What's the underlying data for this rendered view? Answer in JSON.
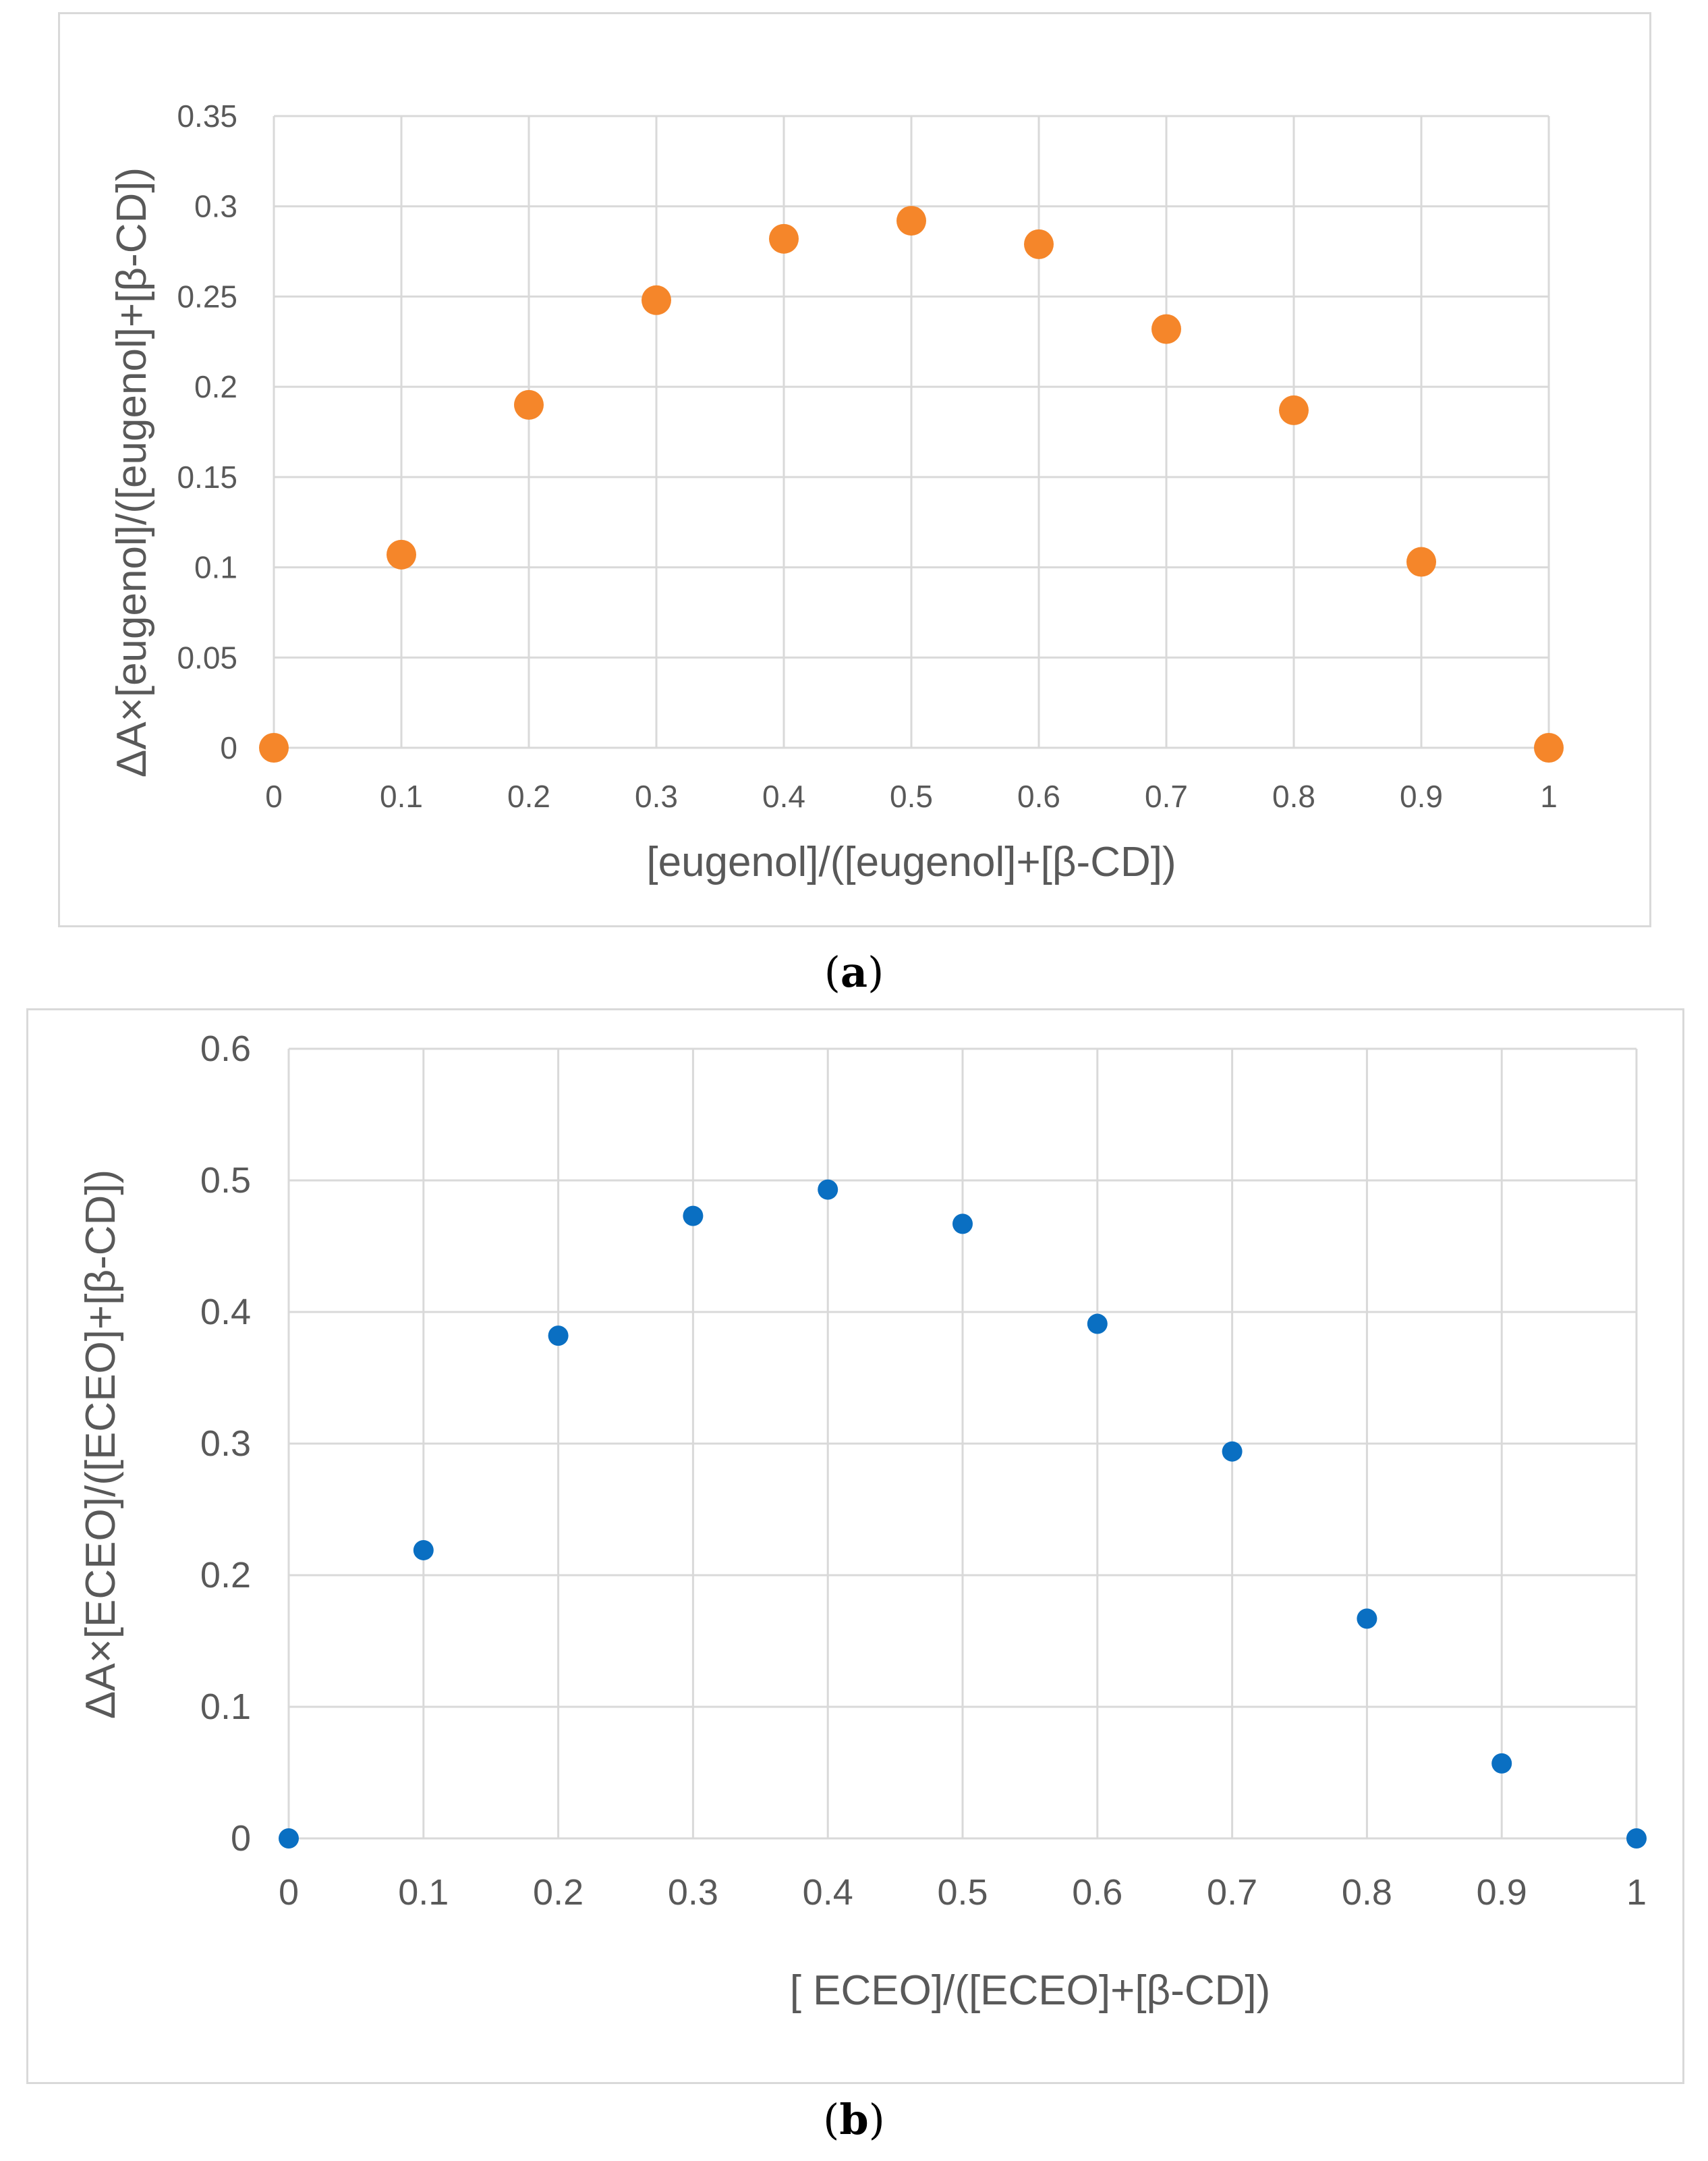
{
  "chart_data": [
    {
      "id": "a",
      "type": "scatter",
      "panel_label": "a",
      "xlabel": "[eugenol]/([eugenol]+[β-CD])",
      "ylabel": "ΔA×[eugenol]/([eugenol]+[β-CD])",
      "xlim": [
        0,
        1
      ],
      "ylim": [
        0,
        0.35
      ],
      "xticks": [
        "0",
        "0.1",
        "0.2",
        "0.3",
        "0.4",
        "0.5",
        "0.6",
        "0.7",
        "0.8",
        "0.9",
        "1"
      ],
      "yticks": [
        "0",
        "0.05",
        "0.1",
        "0.15",
        "0.2",
        "0.25",
        "0.3",
        "0.35"
      ],
      "grid": true,
      "color": "#f5862a",
      "series": [
        {
          "name": "eugenol",
          "x": [
            0,
            0.1,
            0.2,
            0.3,
            0.4,
            0.5,
            0.6,
            0.7,
            0.8,
            0.9,
            1
          ],
          "y": [
            0,
            0.107,
            0.19,
            0.248,
            0.282,
            0.292,
            0.279,
            0.232,
            0.187,
            0.103,
            0
          ]
        }
      ]
    },
    {
      "id": "b",
      "type": "scatter",
      "panel_label": "b",
      "xlabel": "[ ECEO]/([ECEO]+[β-CD])",
      "ylabel": "ΔA×[ECEO]/([ECEO]+[β-CD])",
      "xlim": [
        0,
        1
      ],
      "ylim": [
        0,
        0.6
      ],
      "xticks": [
        "0",
        "0.1",
        "0.2",
        "0.3",
        "0.4",
        "0.5",
        "0.6",
        "0.7",
        "0.8",
        "0.9",
        "1"
      ],
      "yticks": [
        "0",
        "0.1",
        "0.2",
        "0.3",
        "0.4",
        "0.5",
        "0.6"
      ],
      "grid": true,
      "color": "#0a6fc2",
      "series": [
        {
          "name": "ECEO",
          "x": [
            0,
            0.1,
            0.2,
            0.3,
            0.4,
            0.5,
            0.6,
            0.7,
            0.8,
            0.9,
            1
          ],
          "y": [
            0,
            0.219,
            0.382,
            0.473,
            0.493,
            0.467,
            0.391,
            0.294,
            0.167,
            0.057,
            0
          ]
        }
      ]
    }
  ]
}
